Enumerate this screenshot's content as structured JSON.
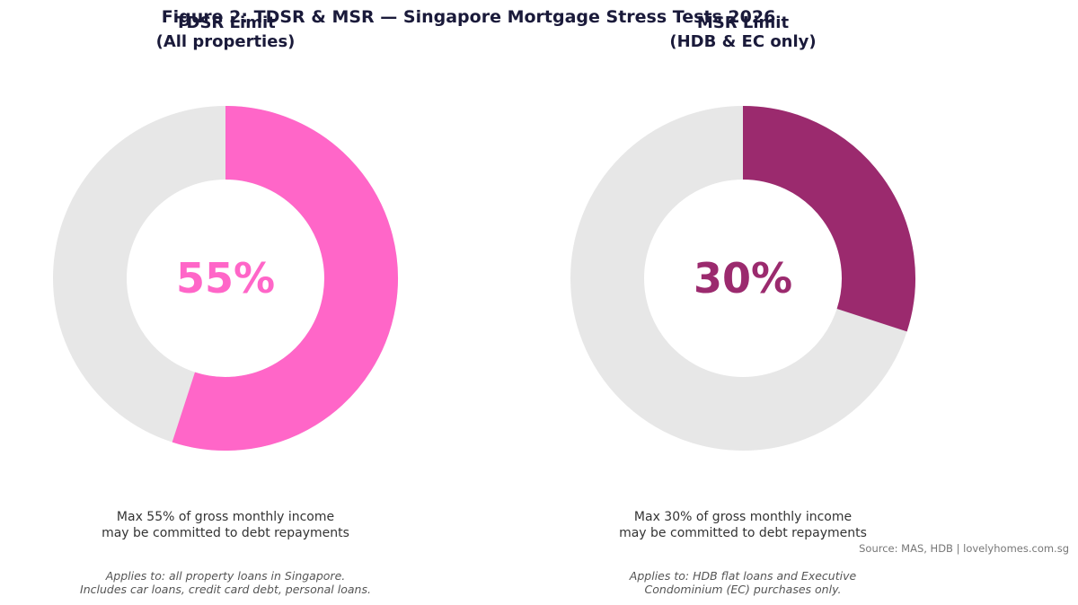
{
  "figure_title": "Figure 2: TDSR & MSR — Singapore Mortgage Stress Tests 2026",
  "source": "Source: MAS, HDB  |  lovelyhomes.com.sg",
  "colors": {
    "track": "#e7e7e7",
    "tdsr": "#ff66c8",
    "msr": "#9b2a6e"
  },
  "chart_data": [
    {
      "type": "pie",
      "title_lines": [
        "TDSR Limit",
        "(All properties)"
      ],
      "values": [
        55,
        45
      ],
      "center_label": "55%",
      "color": "#ff66c8",
      "description_lines": [
        "Max 55% of gross monthly income",
        "may be committed to debt repayments"
      ],
      "note_lines": [
        "Applies to: all property loans in Singapore.",
        "Includes car loans, credit card debt, personal loans."
      ]
    },
    {
      "type": "pie",
      "title_lines": [
        "MSR Limit",
        "(HDB & EC only)"
      ],
      "values": [
        30,
        70
      ],
      "center_label": "30%",
      "color": "#9b2a6e",
      "description_lines": [
        "Max 30% of gross monthly income",
        "may be committed to debt repayments"
      ],
      "note_lines": [
        "Applies to: HDB flat loans and Executive",
        "Condominium (EC) purchases only."
      ]
    }
  ]
}
